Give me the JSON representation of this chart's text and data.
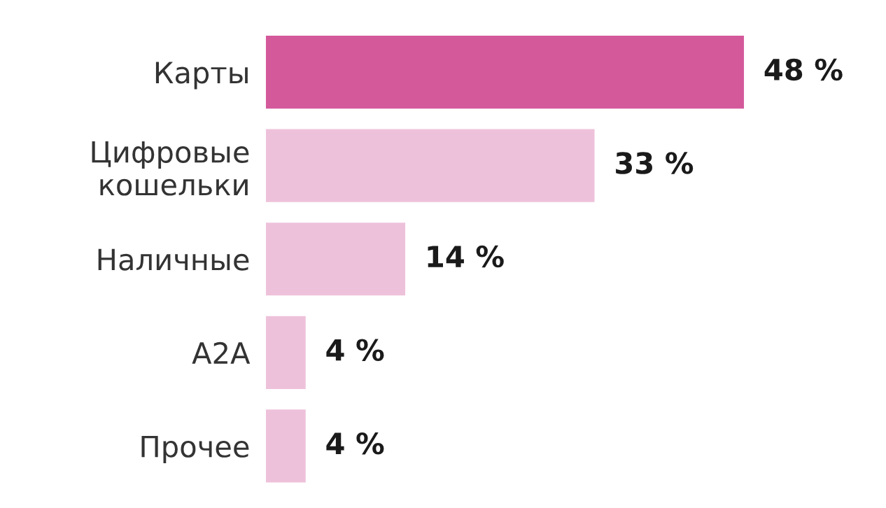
{
  "chart_data": {
    "type": "bar",
    "orientation": "horizontal",
    "categories": [
      "Карты",
      "Цифровые\nкошельки",
      "Наличные",
      "A2A",
      "Прочее"
    ],
    "values": [
      48,
      33,
      14,
      4,
      4
    ],
    "colors": [
      "#d4599b",
      "#eec1da",
      "#eec1da",
      "#eec1da",
      "#eec1da"
    ],
    "value_labels": [
      "48 %",
      "33 %",
      "14 %",
      "4 %",
      "4 %"
    ],
    "grid": false,
    "legend": false
  }
}
